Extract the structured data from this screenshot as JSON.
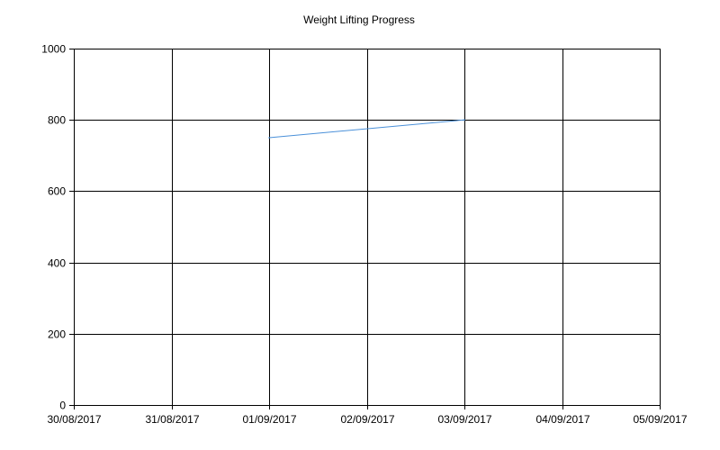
{
  "chart_data": {
    "type": "line",
    "title": "Weight Lifting Progress",
    "xlabel": "",
    "ylabel": "",
    "x_tick_labels": [
      "30/08/2017",
      "31/08/2017",
      "01/09/2017",
      "02/09/2017",
      "03/09/2017",
      "04/09/2017",
      "05/09/2017"
    ],
    "y_tick_labels": [
      "0",
      "200",
      "400",
      "600",
      "800",
      "1000"
    ],
    "xlim": [
      "30/08/2017",
      "05/09/2017"
    ],
    "ylim": [
      0,
      1000
    ],
    "grid": true,
    "legend": "none",
    "series": [
      {
        "color": "#4a90d9",
        "points": [
          {
            "x": "01/09/2017",
            "y": 750
          },
          {
            "x": "03/09/2017",
            "y": 800
          }
        ]
      }
    ]
  }
}
